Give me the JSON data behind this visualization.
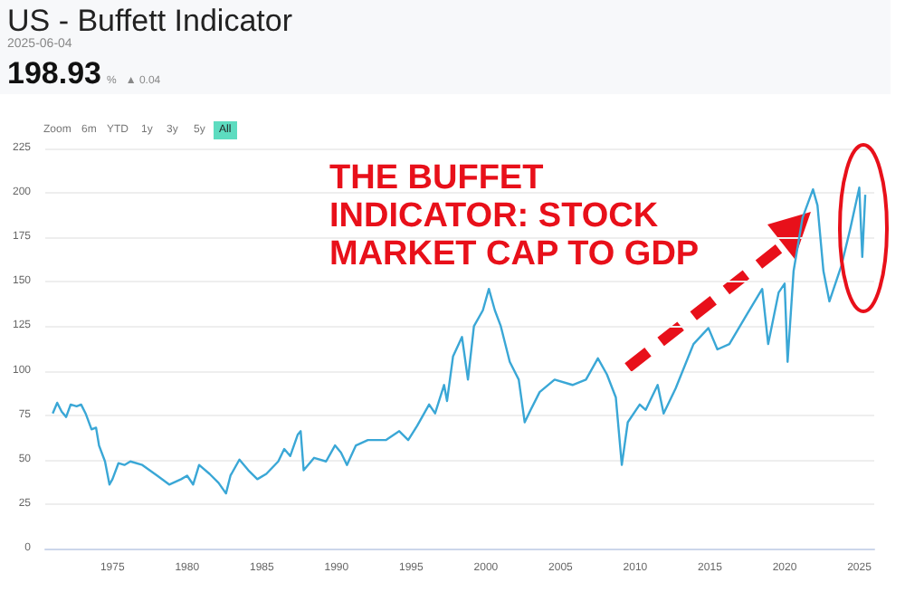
{
  "chart_data": {
    "type": "line",
    "title": "US - Buffett Indicator",
    "subtitle": "2025-06-04",
    "annotations": [
      "198.93",
      "%",
      "▲ 0.04",
      "Zoom",
      "6m",
      "YTD",
      "1y",
      "3y",
      "5y",
      "All",
      "THE BUFFET INDICATOR: STOCK MARKET CAP TO GDP"
    ],
    "x": [
      1971.0,
      1971.3,
      1971.6,
      1971.9,
      1972.2,
      1972.6,
      1972.9,
      1973.2,
      1973.6,
      1973.9,
      1974.1,
      1974.5,
      1974.8,
      1975.0,
      1975.4,
      1975.8,
      1976.2,
      1977.0,
      1978.0,
      1978.8,
      1979.6,
      1980.0,
      1980.4,
      1980.8,
      1981.5,
      1982.1,
      1982.6,
      1982.9,
      1983.5,
      1984.1,
      1984.7,
      1985.3,
      1986.1,
      1986.5,
      1986.9,
      1987.4,
      1987.6,
      1987.8,
      1988.5,
      1989.3,
      1989.9,
      1990.3,
      1990.7,
      1991.3,
      1992.1,
      1993.3,
      1994.2,
      1994.8,
      1995.4,
      1996.2,
      1996.6,
      1997.2,
      1997.4,
      1997.8,
      1998.4,
      1998.8,
      1999.2,
      1999.8,
      2000.2,
      2000.6,
      2001.0,
      2001.6,
      2002.2,
      2002.6,
      2003.0,
      2003.6,
      2004.6,
      2005.8,
      2006.7,
      2007.5,
      2008.1,
      2008.7,
      2009.1,
      2009.5,
      2010.3,
      2010.7,
      2011.5,
      2011.9,
      2012.7,
      2013.9,
      2014.9,
      2015.5,
      2016.3,
      2017.5,
      2018.5,
      2018.9,
      2019.6,
      2020.0,
      2020.2,
      2020.6,
      2021.2,
      2021.9,
      2022.2,
      2022.6,
      2023.0,
      2023.8,
      2024.4,
      2025.0,
      2025.2,
      2025.4
    ],
    "series": [
      {
        "color": "#3aa7d6",
        "values": [
          76,
          82,
          77,
          74,
          81,
          80,
          81,
          76,
          67,
          68,
          58,
          49,
          36,
          39,
          48,
          47,
          49,
          47,
          41,
          36,
          39,
          41,
          36,
          47,
          42,
          37,
          31,
          41,
          50,
          44,
          39,
          42,
          49,
          56,
          52,
          64,
          66,
          44,
          51,
          49,
          58,
          54,
          47,
          58,
          61,
          61,
          66,
          61,
          69,
          81,
          76,
          92,
          83,
          108,
          119,
          95,
          125,
          134,
          146,
          134,
          125,
          105,
          95,
          71,
          78,
          88,
          95,
          92,
          95,
          107,
          98,
          85,
          47,
          71,
          81,
          78,
          92,
          76,
          90,
          115,
          124,
          112,
          115,
          132,
          146,
          115,
          144,
          149,
          105,
          156,
          186,
          202,
          193,
          156,
          139,
          159,
          180,
          203,
          164,
          199
        ]
      }
    ],
    "xlim": [
      1970.5,
      2026
    ],
    "xticks": [
      1975,
      1980,
      1985,
      1990,
      1995,
      2000,
      2005,
      2010,
      2015,
      2020,
      2025
    ],
    "ylim": [
      0,
      225
    ],
    "yticks": [
      0,
      25,
      50,
      75,
      100,
      125,
      150,
      175,
      200,
      225
    ],
    "grid": "y"
  }
}
